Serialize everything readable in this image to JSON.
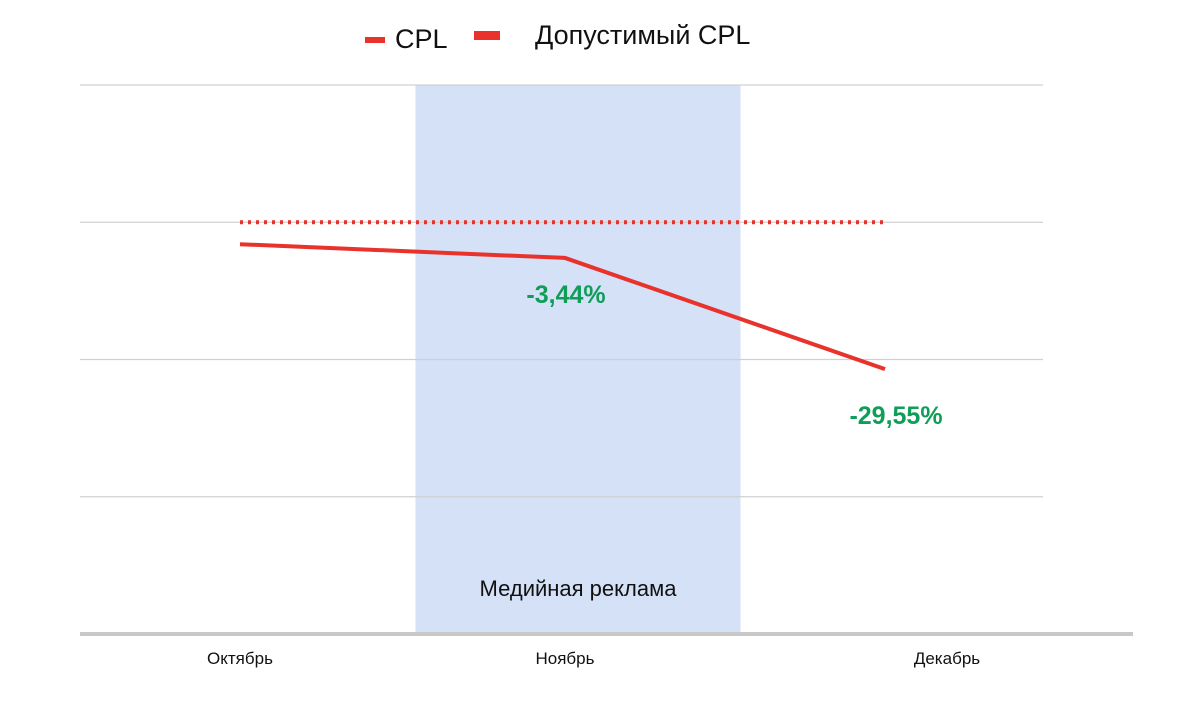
{
  "legend": {
    "cpl": "CPL",
    "allowed_cpl": "Допустимый CPL"
  },
  "colors": {
    "cpl_line": "#e8322b",
    "allowed_line": "#e8322b",
    "highlight_band": "#d4e1f7",
    "gridline": "#d0d0d0",
    "axis": "#c8c8c8",
    "annotation": "#0f9d58"
  },
  "chart_data": {
    "type": "line",
    "categories": [
      "Октябрь",
      "Ноябрь",
      "Декабрь"
    ],
    "series": [
      {
        "name": "CPL",
        "style": "solid",
        "values": [
          2.84,
          2.74,
          1.93
        ]
      },
      {
        "name": "Допустимый CPL",
        "style": "dotted",
        "values": [
          3.0,
          3.0,
          3.0
        ]
      }
    ],
    "ylim": [
      0,
      4
    ],
    "y_gridlines": [
      1,
      2,
      3,
      4
    ],
    "y_tick_labels_shown": false,
    "highlight": {
      "label": "Медийная реклама",
      "from_category": "Ноябрь",
      "span": [
        -0.46,
        0.54
      ]
    },
    "annotations": [
      {
        "category": "Ноябрь",
        "text": "-3,44%",
        "offset_y": 0.3
      },
      {
        "category": "Декабрь",
        "text": "-29,55%",
        "offset_y": -0.3
      }
    ],
    "legend_position": "top",
    "grid": true
  }
}
